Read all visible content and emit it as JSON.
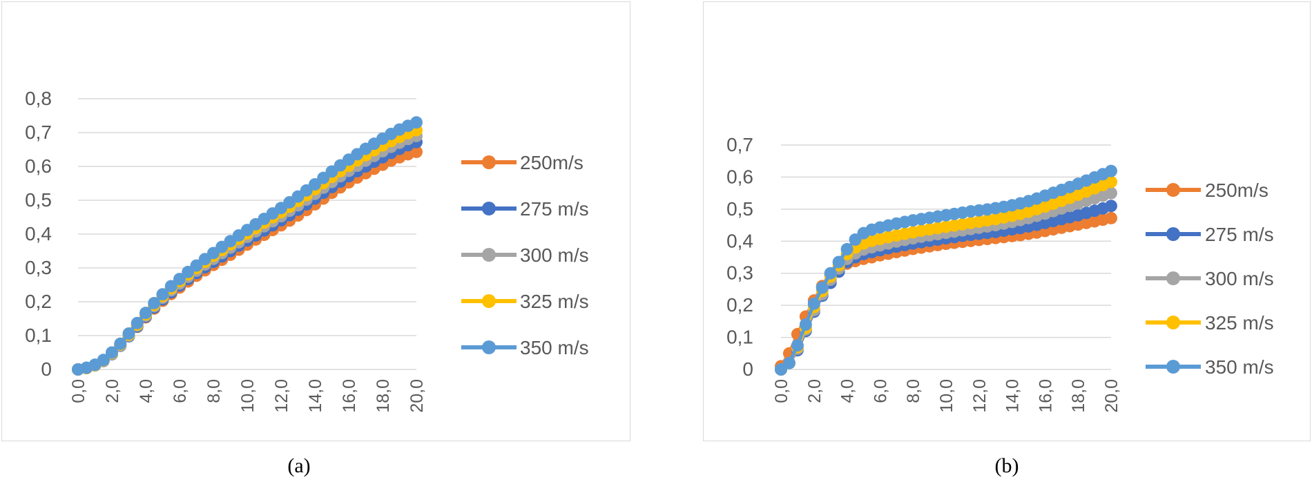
{
  "chart_data": [
    {
      "type": "line",
      "caption": "(a)",
      "ylim": [
        0,
        0.8
      ],
      "yticks": [
        "0",
        "0,1",
        "0,2",
        "0,3",
        "0,4",
        "0,5",
        "0,6",
        "0,7",
        "0,8"
      ],
      "xticks": [
        "0,0",
        "2,0",
        "4,0",
        "6,0",
        "8,0",
        "10,0",
        "12,0",
        "14,0",
        "16,0",
        "18,0",
        "20,0"
      ],
      "xlim": [
        0,
        20
      ],
      "grid": true,
      "legend_position": "right",
      "series": [
        {
          "name": "250m/s",
          "color": "#ED7D31",
          "x": [
            0,
            0.5,
            1,
            1.5,
            2,
            2.5,
            3,
            3.5,
            4,
            4.5,
            5,
            5.5,
            6,
            6.5,
            7,
            7.5,
            8,
            8.5,
            9,
            9.5,
            10,
            10.5,
            11,
            11.5,
            12,
            12.5,
            13,
            13.5,
            14,
            14.5,
            15,
            15.5,
            16,
            16.5,
            17,
            17.5,
            18,
            18.5,
            19,
            19.5,
            20
          ],
          "values": [
            0,
            0.004,
            0.012,
            0.025,
            0.045,
            0.07,
            0.098,
            0.126,
            0.154,
            0.18,
            0.203,
            0.223,
            0.242,
            0.26,
            0.277,
            0.293,
            0.309,
            0.324,
            0.339,
            0.354,
            0.369,
            0.384,
            0.398,
            0.412,
            0.426,
            0.44,
            0.455,
            0.471,
            0.488,
            0.505,
            0.522,
            0.538,
            0.553,
            0.567,
            0.58,
            0.593,
            0.605,
            0.617,
            0.627,
            0.636,
            0.643
          ]
        },
        {
          "name": "275 m/s",
          "color": "#4472C4",
          "x": [
            0,
            0.5,
            1,
            1.5,
            2,
            2.5,
            3,
            3.5,
            4,
            4.5,
            5,
            5.5,
            6,
            6.5,
            7,
            7.5,
            8,
            8.5,
            9,
            9.5,
            10,
            10.5,
            11,
            11.5,
            12,
            12.5,
            13,
            13.5,
            14,
            14.5,
            15,
            15.5,
            16,
            16.5,
            17,
            17.5,
            18,
            18.5,
            19,
            19.5,
            20
          ],
          "values": [
            0,
            0.004,
            0.012,
            0.025,
            0.045,
            0.07,
            0.098,
            0.127,
            0.156,
            0.183,
            0.207,
            0.228,
            0.248,
            0.267,
            0.285,
            0.302,
            0.318,
            0.334,
            0.35,
            0.366,
            0.381,
            0.396,
            0.411,
            0.426,
            0.441,
            0.456,
            0.472,
            0.488,
            0.505,
            0.522,
            0.539,
            0.555,
            0.571,
            0.586,
            0.6,
            0.614,
            0.627,
            0.64,
            0.652,
            0.663,
            0.672
          ]
        },
        {
          "name": "300 m/s",
          "color": "#A5A5A5",
          "x": [
            0,
            0.5,
            1,
            1.5,
            2,
            2.5,
            3,
            3.5,
            4,
            4.5,
            5,
            5.5,
            6,
            6.5,
            7,
            7.5,
            8,
            8.5,
            9,
            9.5,
            10,
            10.5,
            11,
            11.5,
            12,
            12.5,
            13,
            13.5,
            14,
            14.5,
            15,
            15.5,
            16,
            16.5,
            17,
            17.5,
            18,
            18.5,
            19,
            19.5,
            20
          ],
          "values": [
            0,
            0.004,
            0.012,
            0.025,
            0.046,
            0.071,
            0.1,
            0.13,
            0.159,
            0.187,
            0.212,
            0.234,
            0.254,
            0.274,
            0.292,
            0.31,
            0.327,
            0.344,
            0.36,
            0.376,
            0.392,
            0.408,
            0.423,
            0.438,
            0.453,
            0.469,
            0.485,
            0.502,
            0.519,
            0.537,
            0.554,
            0.571,
            0.587,
            0.602,
            0.617,
            0.631,
            0.645,
            0.658,
            0.67,
            0.681,
            0.69
          ]
        },
        {
          "name": "325 m/s",
          "color": "#FFC000",
          "x": [
            0,
            0.5,
            1,
            1.5,
            2,
            2.5,
            3,
            3.5,
            4,
            4.5,
            5,
            5.5,
            6,
            6.5,
            7,
            7.5,
            8,
            8.5,
            9,
            9.5,
            10,
            10.5,
            11,
            11.5,
            12,
            12.5,
            13,
            13.5,
            14,
            14.5,
            15,
            15.5,
            16,
            16.5,
            17,
            17.5,
            18,
            18.5,
            19,
            19.5,
            20
          ],
          "values": [
            0,
            0.004,
            0.013,
            0.027,
            0.048,
            0.074,
            0.103,
            0.133,
            0.163,
            0.191,
            0.217,
            0.24,
            0.261,
            0.281,
            0.3,
            0.318,
            0.336,
            0.353,
            0.37,
            0.386,
            0.402,
            0.418,
            0.434,
            0.45,
            0.465,
            0.481,
            0.498,
            0.515,
            0.533,
            0.551,
            0.569,
            0.586,
            0.602,
            0.618,
            0.633,
            0.648,
            0.662,
            0.675,
            0.687,
            0.698,
            0.707
          ]
        },
        {
          "name": "350 m/s",
          "color": "#5B9BD5",
          "x": [
            0,
            0.5,
            1,
            1.5,
            2,
            2.5,
            3,
            3.5,
            4,
            4.5,
            5,
            5.5,
            6,
            6.5,
            7,
            7.5,
            8,
            8.5,
            9,
            9.5,
            10,
            10.5,
            11,
            11.5,
            12,
            12.5,
            13,
            13.5,
            14,
            14.5,
            15,
            15.5,
            16,
            16.5,
            17,
            17.5,
            18,
            18.5,
            19,
            19.5,
            20
          ],
          "values": [
            0,
            0.005,
            0.014,
            0.028,
            0.05,
            0.076,
            0.106,
            0.137,
            0.167,
            0.196,
            0.222,
            0.246,
            0.267,
            0.288,
            0.307,
            0.326,
            0.344,
            0.362,
            0.379,
            0.396,
            0.412,
            0.429,
            0.445,
            0.461,
            0.477,
            0.494,
            0.511,
            0.529,
            0.547,
            0.566,
            0.585,
            0.603,
            0.62,
            0.636,
            0.652,
            0.667,
            0.682,
            0.696,
            0.709,
            0.72,
            0.73
          ]
        }
      ]
    },
    {
      "type": "line",
      "caption": "(b)",
      "ylim": [
        0,
        0.7
      ],
      "yticks": [
        "0",
        "0,1",
        "0,2",
        "0,3",
        "0,4",
        "0,5",
        "0,6",
        "0,7"
      ],
      "xticks": [
        "0,0",
        "2,0",
        "4,0",
        "6,0",
        "8,0",
        "10,0",
        "12,0",
        "14,0",
        "16,0",
        "18,0",
        "20,0"
      ],
      "xlim": [
        0,
        20
      ],
      "grid": true,
      "legend_position": "right",
      "series": [
        {
          "name": "250m/s",
          "color": "#ED7D31",
          "x": [
            0,
            0.5,
            1,
            1.5,
            2,
            2.5,
            3,
            3.5,
            4,
            4.5,
            5,
            5.5,
            6,
            6.5,
            7,
            7.5,
            8,
            8.5,
            9,
            9.5,
            10,
            10.5,
            11,
            11.5,
            12,
            12.5,
            13,
            13.5,
            14,
            14.5,
            15,
            15.5,
            16,
            16.5,
            17,
            17.5,
            18,
            18.5,
            19,
            19.5,
            20
          ],
          "values": [
            0.01,
            0.05,
            0.11,
            0.165,
            0.215,
            0.26,
            0.295,
            0.315,
            0.33,
            0.338,
            0.345,
            0.35,
            0.356,
            0.361,
            0.366,
            0.371,
            0.376,
            0.38,
            0.384,
            0.388,
            0.392,
            0.395,
            0.398,
            0.401,
            0.404,
            0.407,
            0.41,
            0.413,
            0.416,
            0.419,
            0.423,
            0.427,
            0.432,
            0.437,
            0.442,
            0.447,
            0.452,
            0.457,
            0.462,
            0.467,
            0.472
          ]
        },
        {
          "name": "275 m/s",
          "color": "#4472C4",
          "x": [
            0,
            0.5,
            1,
            1.5,
            2,
            2.5,
            3,
            3.5,
            4,
            4.5,
            5,
            5.5,
            6,
            6.5,
            7,
            7.5,
            8,
            8.5,
            9,
            9.5,
            10,
            10.5,
            11,
            11.5,
            12,
            12.5,
            13,
            13.5,
            14,
            14.5,
            15,
            15.5,
            16,
            16.5,
            17,
            17.5,
            18,
            18.5,
            19,
            19.5,
            20
          ],
          "values": [
            0,
            0.02,
            0.06,
            0.12,
            0.18,
            0.23,
            0.27,
            0.305,
            0.335,
            0.35,
            0.36,
            0.366,
            0.372,
            0.378,
            0.383,
            0.388,
            0.393,
            0.397,
            0.401,
            0.405,
            0.409,
            0.413,
            0.417,
            0.42,
            0.423,
            0.426,
            0.429,
            0.433,
            0.437,
            0.441,
            0.446,
            0.451,
            0.457,
            0.463,
            0.469,
            0.475,
            0.481,
            0.488,
            0.495,
            0.502,
            0.51
          ]
        },
        {
          "name": "300 m/s",
          "color": "#A5A5A5",
          "x": [
            0,
            0.5,
            1,
            1.5,
            2,
            2.5,
            3,
            3.5,
            4,
            4.5,
            5,
            5.5,
            6,
            6.5,
            7,
            7.5,
            8,
            8.5,
            9,
            9.5,
            10,
            10.5,
            11,
            11.5,
            12,
            12.5,
            13,
            13.5,
            14,
            14.5,
            15,
            15.5,
            16,
            16.5,
            17,
            17.5,
            18,
            18.5,
            19,
            19.5,
            20
          ],
          "values": [
            0,
            0.02,
            0.065,
            0.125,
            0.185,
            0.235,
            0.28,
            0.315,
            0.345,
            0.362,
            0.374,
            0.381,
            0.387,
            0.393,
            0.399,
            0.404,
            0.409,
            0.414,
            0.418,
            0.422,
            0.426,
            0.43,
            0.434,
            0.438,
            0.442,
            0.446,
            0.45,
            0.455,
            0.46,
            0.466,
            0.472,
            0.479,
            0.486,
            0.494,
            0.502,
            0.51,
            0.518,
            0.526,
            0.534,
            0.542,
            0.55
          ]
        },
        {
          "name": "325 m/s",
          "color": "#FFC000",
          "x": [
            0,
            0.5,
            1,
            1.5,
            2,
            2.5,
            3,
            3.5,
            4,
            4.5,
            5,
            5.5,
            6,
            6.5,
            7,
            7.5,
            8,
            8.5,
            9,
            9.5,
            10,
            10.5,
            11,
            11.5,
            12,
            12.5,
            13,
            13.5,
            14,
            14.5,
            15,
            15.5,
            16,
            16.5,
            17,
            17.5,
            18,
            18.5,
            19,
            19.5,
            20
          ],
          "values": [
            0,
            0.02,
            0.07,
            0.13,
            0.195,
            0.245,
            0.29,
            0.325,
            0.36,
            0.38,
            0.393,
            0.401,
            0.407,
            0.413,
            0.418,
            0.423,
            0.428,
            0.433,
            0.437,
            0.441,
            0.445,
            0.449,
            0.453,
            0.457,
            0.461,
            0.465,
            0.469,
            0.474,
            0.479,
            0.485,
            0.492,
            0.5,
            0.508,
            0.517,
            0.526,
            0.535,
            0.545,
            0.555,
            0.565,
            0.575,
            0.585
          ]
        },
        {
          "name": "350 m/s",
          "color": "#5B9BD5",
          "x": [
            0,
            0.5,
            1,
            1.5,
            2,
            2.5,
            3,
            3.5,
            4,
            4.5,
            5,
            5.5,
            6,
            6.5,
            7,
            7.5,
            8,
            8.5,
            9,
            9.5,
            10,
            10.5,
            11,
            11.5,
            12,
            12.5,
            13,
            13.5,
            14,
            14.5,
            15,
            15.5,
            16,
            16.5,
            17,
            17.5,
            18,
            18.5,
            19,
            19.5,
            20
          ],
          "values": [
            0,
            0.02,
            0.075,
            0.14,
            0.205,
            0.255,
            0.3,
            0.335,
            0.375,
            0.405,
            0.425,
            0.436,
            0.443,
            0.449,
            0.455,
            0.46,
            0.465,
            0.469,
            0.473,
            0.477,
            0.481,
            0.485,
            0.489,
            0.493,
            0.496,
            0.499,
            0.503,
            0.507,
            0.512,
            0.518,
            0.525,
            0.533,
            0.542,
            0.551,
            0.56,
            0.569,
            0.579,
            0.589,
            0.599,
            0.609,
            0.619
          ]
        }
      ]
    }
  ]
}
